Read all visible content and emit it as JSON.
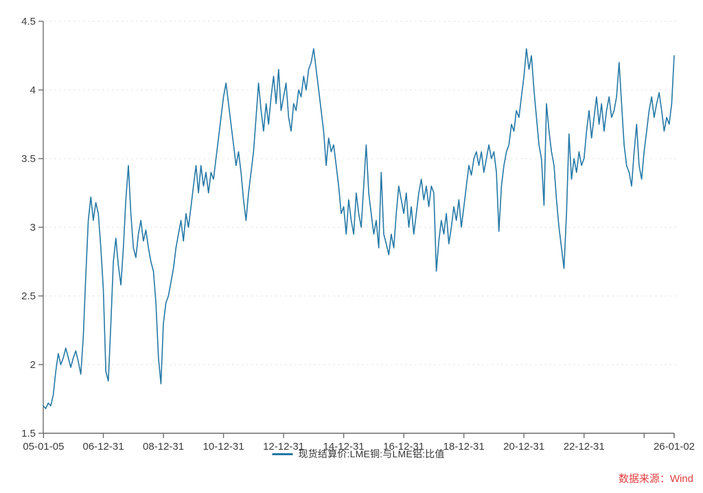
{
  "legend": {
    "label": "现货结算价:LME铜:与LME铝:比值"
  },
  "source_note": "数据来源：Wind",
  "colors": {
    "line": "#2478a6",
    "axis": "#6b6b6b",
    "tick_text": "#3c3c3c",
    "grid": "#e4e4e4",
    "source_red": "#e03e3e",
    "background": "#ffffff"
  },
  "chart_data": {
    "type": "line",
    "title": "",
    "xlabel": "",
    "ylabel": "",
    "legend_position": "bottom-center",
    "grid": "horizontal-dashed",
    "ylim": [
      1.5,
      4.5
    ],
    "y_ticks": [
      {
        "label": "1.5",
        "v": 1.5
      },
      {
        "label": "2",
        "v": 2.0
      },
      {
        "label": "2.5",
        "v": 2.5
      },
      {
        "label": "3",
        "v": 3.0
      },
      {
        "label": "3.5",
        "v": 3.5
      },
      {
        "label": "4",
        "v": 4.0
      },
      {
        "label": "4.5",
        "v": 4.5
      }
    ],
    "x_ticks": [
      {
        "label": "05-01-05",
        "t": 2005.01
      },
      {
        "label": "06-12-31",
        "t": 2007.0
      },
      {
        "label": "08-12-31",
        "t": 2009.0
      },
      {
        "label": "10-12-31",
        "t": 2011.0
      },
      {
        "label": "12-12-31",
        "t": 2013.0
      },
      {
        "label": "14-12-31",
        "t": 2015.0
      },
      {
        "label": "16-12-31",
        "t": 2017.0
      },
      {
        "label": "18-12-31",
        "t": 2019.0
      },
      {
        "label": "20-12-31",
        "t": 2021.0
      },
      {
        "label": "22-12-31",
        "t": 2023.0
      },
      {
        "label": "",
        "t": 2025.0
      },
      {
        "label": "26-01-02",
        "t": 2026.0
      }
    ],
    "series": [
      {
        "name": "现货结算价:LME铜:与LME铝:比值",
        "x_start": 2005.0,
        "x_step": 0.0833333,
        "values": [
          1.7,
          1.68,
          1.72,
          1.7,
          1.78,
          1.95,
          2.08,
          2.0,
          2.05,
          2.12,
          2.05,
          1.98,
          2.05,
          2.1,
          2.02,
          1.93,
          2.2,
          2.65,
          3.05,
          3.22,
          3.05,
          3.18,
          3.1,
          2.85,
          2.55,
          1.95,
          1.88,
          2.3,
          2.75,
          2.92,
          2.72,
          2.58,
          2.85,
          3.2,
          3.45,
          3.1,
          2.85,
          2.78,
          2.95,
          3.05,
          2.9,
          2.98,
          2.85,
          2.75,
          2.68,
          2.45,
          2.05,
          1.86,
          2.3,
          2.45,
          2.5,
          2.6,
          2.7,
          2.85,
          2.95,
          3.05,
          2.9,
          3.1,
          3.0,
          3.15,
          3.3,
          3.45,
          3.25,
          3.45,
          3.3,
          3.4,
          3.25,
          3.4,
          3.35,
          3.5,
          3.65,
          3.8,
          3.95,
          4.05,
          3.9,
          3.75,
          3.6,
          3.45,
          3.55,
          3.4,
          3.2,
          3.05,
          3.25,
          3.4,
          3.55,
          3.8,
          4.05,
          3.85,
          3.7,
          3.9,
          3.75,
          3.95,
          4.1,
          3.9,
          4.15,
          3.85,
          3.95,
          4.05,
          3.8,
          3.7,
          3.9,
          3.85,
          4.0,
          3.95,
          4.1,
          4.0,
          4.15,
          4.2,
          4.3,
          4.15,
          4.0,
          3.85,
          3.7,
          3.45,
          3.65,
          3.55,
          3.6,
          3.45,
          3.3,
          3.1,
          3.15,
          2.95,
          3.2,
          3.05,
          2.95,
          3.25,
          3.1,
          3.0,
          3.3,
          3.6,
          3.25,
          3.1,
          2.95,
          3.05,
          2.85,
          3.4,
          2.95,
          2.88,
          2.8,
          2.95,
          2.85,
          3.1,
          3.3,
          3.2,
          3.1,
          3.25,
          3.0,
          3.15,
          2.95,
          3.1,
          3.25,
          3.35,
          3.2,
          3.3,
          3.15,
          3.3,
          3.25,
          2.68,
          2.9,
          3.05,
          2.95,
          3.1,
          2.88,
          3.0,
          3.15,
          3.05,
          3.2,
          3.0,
          3.15,
          3.3,
          3.45,
          3.38,
          3.5,
          3.55,
          3.45,
          3.55,
          3.4,
          3.5,
          3.6,
          3.5,
          3.55,
          3.4,
          2.97,
          3.3,
          3.45,
          3.55,
          3.6,
          3.75,
          3.7,
          3.85,
          3.8,
          3.95,
          4.1,
          4.3,
          4.15,
          4.25,
          4.0,
          3.8,
          3.6,
          3.5,
          3.16,
          3.9,
          3.7,
          3.55,
          3.45,
          3.2,
          3.0,
          2.85,
          2.7,
          3.1,
          3.68,
          3.35,
          3.5,
          3.4,
          3.55,
          3.45,
          3.5,
          3.7,
          3.85,
          3.65,
          3.8,
          3.95,
          3.75,
          3.9,
          3.7,
          3.85,
          3.95,
          3.8,
          3.85,
          3.95,
          4.2,
          3.9,
          3.6,
          3.45,
          3.4,
          3.3,
          3.55,
          3.75,
          3.45,
          3.35,
          3.55,
          3.7,
          3.85,
          3.95,
          3.8,
          3.9,
          3.98,
          3.85,
          3.7,
          3.8,
          3.75,
          3.9,
          4.25
        ]
      }
    ]
  }
}
